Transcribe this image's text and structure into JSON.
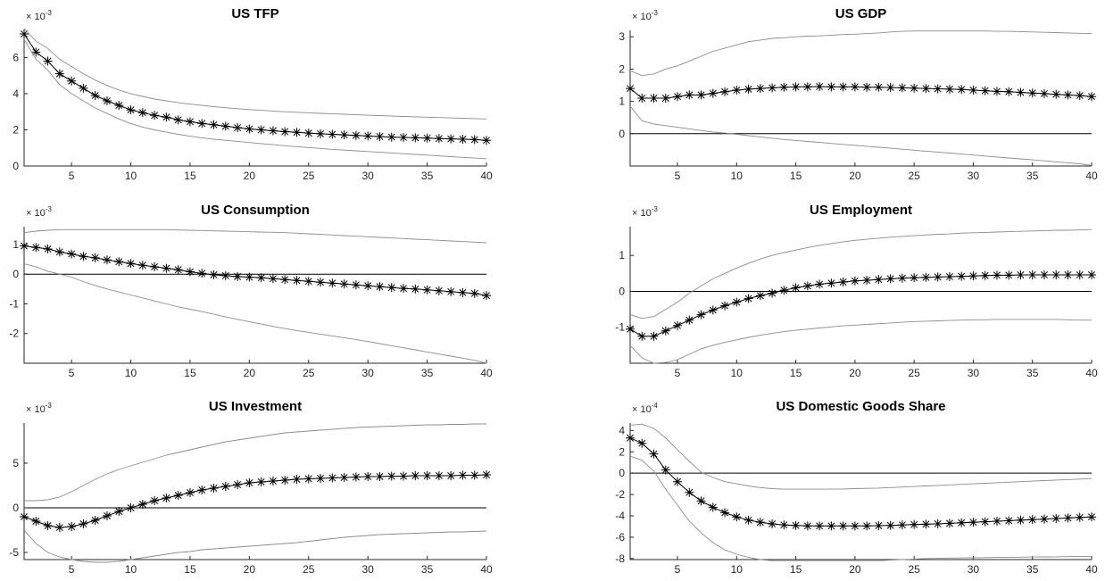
{
  "chart_data": [
    {
      "type": "line",
      "title": "US TFP",
      "multiplier": "× 10^-3",
      "multiplier_base": "× 10",
      "multiplier_exp": "-3",
      "x": {
        "min": 1,
        "max": 40,
        "ticks": [
          5,
          10,
          15,
          20,
          25,
          30,
          35,
          40
        ]
      },
      "y": {
        "min": 0,
        "max": 7.5,
        "ticks": [
          0,
          2,
          4,
          6
        ]
      },
      "zero_line": false,
      "series": [
        {
          "role": "estimate",
          "values": [
            7.3,
            6.3,
            5.8,
            5.1,
            4.7,
            4.3,
            3.9,
            3.6,
            3.35,
            3.1,
            2.95,
            2.8,
            2.7,
            2.55,
            2.45,
            2.35,
            2.28,
            2.2,
            2.12,
            2.05,
            2.0,
            1.95,
            1.9,
            1.86,
            1.82,
            1.78,
            1.75,
            1.72,
            1.69,
            1.66,
            1.63,
            1.6,
            1.58,
            1.56,
            1.54,
            1.52,
            1.5,
            1.48,
            1.46,
            1.42
          ]
        },
        {
          "role": "upper",
          "values": [
            7.6,
            6.9,
            6.5,
            5.9,
            5.5,
            5.1,
            4.75,
            4.45,
            4.2,
            4.0,
            3.85,
            3.7,
            3.6,
            3.5,
            3.42,
            3.35,
            3.28,
            3.22,
            3.17,
            3.12,
            3.08,
            3.04,
            3.0,
            2.97,
            2.94,
            2.91,
            2.88,
            2.86,
            2.83,
            2.81,
            2.79,
            2.76,
            2.74,
            2.72,
            2.7,
            2.68,
            2.66,
            2.64,
            2.62,
            2.6
          ]
        },
        {
          "role": "lower",
          "values": [
            7.0,
            5.9,
            5.3,
            4.5,
            4.0,
            3.6,
            3.2,
            2.9,
            2.6,
            2.35,
            2.15,
            2.0,
            1.87,
            1.75,
            1.65,
            1.56,
            1.48,
            1.42,
            1.36,
            1.3,
            1.24,
            1.18,
            1.12,
            1.07,
            1.02,
            0.97,
            0.92,
            0.88,
            0.84,
            0.8,
            0.76,
            0.72,
            0.68,
            0.64,
            0.6,
            0.56,
            0.52,
            0.48,
            0.44,
            0.4
          ]
        }
      ]
    },
    {
      "type": "line",
      "title": "US GDP",
      "multiplier": "× 10^-3",
      "multiplier_base": "× 10",
      "multiplier_exp": "-3",
      "x": {
        "min": 1,
        "max": 40,
        "ticks": [
          5,
          10,
          15,
          20,
          25,
          30,
          35,
          40
        ]
      },
      "y": {
        "min": -1.0,
        "max": 3.2,
        "ticks": [
          0,
          1,
          2,
          3
        ]
      },
      "zero_line": true,
      "series": [
        {
          "role": "estimate",
          "values": [
            1.4,
            1.1,
            1.1,
            1.1,
            1.15,
            1.2,
            1.2,
            1.25,
            1.3,
            1.35,
            1.38,
            1.4,
            1.42,
            1.44,
            1.45,
            1.45,
            1.46,
            1.45,
            1.45,
            1.45,
            1.44,
            1.44,
            1.43,
            1.42,
            1.41,
            1.4,
            1.39,
            1.38,
            1.37,
            1.35,
            1.33,
            1.31,
            1.3,
            1.28,
            1.26,
            1.24,
            1.22,
            1.2,
            1.18,
            1.15
          ]
        },
        {
          "role": "upper",
          "values": [
            1.95,
            1.8,
            1.85,
            2.0,
            2.1,
            2.25,
            2.4,
            2.55,
            2.65,
            2.75,
            2.85,
            2.9,
            2.95,
            2.97,
            3.0,
            3.02,
            3.03,
            3.05,
            3.07,
            3.08,
            3.1,
            3.12,
            3.15,
            3.17,
            3.18,
            3.18,
            3.18,
            3.18,
            3.18,
            3.18,
            3.18,
            3.17,
            3.17,
            3.16,
            3.15,
            3.14,
            3.13,
            3.12,
            3.11,
            3.1
          ]
        },
        {
          "role": "lower",
          "values": [
            0.85,
            0.4,
            0.3,
            0.25,
            0.2,
            0.15,
            0.1,
            0.05,
            0.02,
            -0.02,
            -0.06,
            -0.1,
            -0.14,
            -0.18,
            -0.21,
            -0.24,
            -0.27,
            -0.3,
            -0.33,
            -0.36,
            -0.39,
            -0.42,
            -0.45,
            -0.48,
            -0.51,
            -0.54,
            -0.57,
            -0.6,
            -0.63,
            -0.66,
            -0.69,
            -0.72,
            -0.75,
            -0.78,
            -0.81,
            -0.84,
            -0.87,
            -0.9,
            -0.93,
            -0.98
          ]
        }
      ]
    },
    {
      "type": "line",
      "title": "US Consumption",
      "multiplier": "× 10^-3",
      "multiplier_base": "× 10",
      "multiplier_exp": "-3",
      "x": {
        "min": 1,
        "max": 40,
        "ticks": [
          5,
          10,
          15,
          20,
          25,
          30,
          35,
          40
        ]
      },
      "y": {
        "min": -3.0,
        "max": 1.6,
        "ticks": [
          -2,
          -1,
          0,
          1
        ]
      },
      "zero_line": true,
      "series": [
        {
          "role": "estimate",
          "values": [
            0.95,
            0.9,
            0.85,
            0.75,
            0.68,
            0.6,
            0.55,
            0.48,
            0.42,
            0.36,
            0.3,
            0.25,
            0.2,
            0.15,
            0.08,
            0.03,
            -0.02,
            -0.05,
            -0.08,
            -0.1,
            -0.12,
            -0.15,
            -0.18,
            -0.21,
            -0.24,
            -0.27,
            -0.3,
            -0.33,
            -0.36,
            -0.39,
            -0.42,
            -0.45,
            -0.48,
            -0.5,
            -0.53,
            -0.56,
            -0.59,
            -0.62,
            -0.65,
            -0.72
          ]
        },
        {
          "role": "upper",
          "values": [
            1.4,
            1.45,
            1.48,
            1.5,
            1.5,
            1.5,
            1.5,
            1.5,
            1.5,
            1.5,
            1.5,
            1.5,
            1.5,
            1.49,
            1.48,
            1.47,
            1.46,
            1.45,
            1.44,
            1.43,
            1.42,
            1.41,
            1.4,
            1.38,
            1.36,
            1.34,
            1.32,
            1.3,
            1.28,
            1.26,
            1.24,
            1.22,
            1.2,
            1.18,
            1.16,
            1.14,
            1.12,
            1.1,
            1.08,
            1.06
          ]
        },
        {
          "role": "lower",
          "values": [
            0.35,
            0.25,
            0.1,
            0.0,
            -0.1,
            -0.25,
            -0.38,
            -0.5,
            -0.6,
            -0.7,
            -0.8,
            -0.9,
            -1.0,
            -1.1,
            -1.18,
            -1.26,
            -1.35,
            -1.44,
            -1.52,
            -1.6,
            -1.68,
            -1.76,
            -1.83,
            -1.9,
            -1.96,
            -2.02,
            -2.08,
            -2.14,
            -2.2,
            -2.27,
            -2.34,
            -2.41,
            -2.48,
            -2.55,
            -2.62,
            -2.69,
            -2.76,
            -2.83,
            -2.9,
            -3.0
          ]
        }
      ]
    },
    {
      "type": "line",
      "title": "US Employment",
      "multiplier": "× 10^-3",
      "multiplier_base": "× 10",
      "multiplier_exp": "-3",
      "x": {
        "min": 1,
        "max": 40,
        "ticks": [
          5,
          10,
          15,
          20,
          25,
          30,
          35,
          40
        ]
      },
      "y": {
        "min": -2.0,
        "max": 1.8,
        "ticks": [
          -1,
          0,
          1
        ]
      },
      "zero_line": true,
      "series": [
        {
          "role": "estimate",
          "values": [
            -1.05,
            -1.25,
            -1.25,
            -1.1,
            -0.95,
            -0.8,
            -0.65,
            -0.52,
            -0.4,
            -0.3,
            -0.2,
            -0.12,
            -0.05,
            0.03,
            0.1,
            0.15,
            0.2,
            0.23,
            0.26,
            0.29,
            0.31,
            0.33,
            0.35,
            0.37,
            0.38,
            0.39,
            0.4,
            0.41,
            0.42,
            0.43,
            0.44,
            0.45,
            0.45,
            0.46,
            0.46,
            0.46,
            0.46,
            0.46,
            0.46,
            0.46
          ]
        },
        {
          "role": "upper",
          "values": [
            -0.65,
            -0.75,
            -0.7,
            -0.5,
            -0.3,
            -0.05,
            0.15,
            0.35,
            0.5,
            0.65,
            0.78,
            0.9,
            1.0,
            1.08,
            1.15,
            1.22,
            1.28,
            1.33,
            1.38,
            1.42,
            1.45,
            1.48,
            1.51,
            1.53,
            1.55,
            1.57,
            1.59,
            1.6,
            1.62,
            1.63,
            1.64,
            1.65,
            1.66,
            1.67,
            1.68,
            1.69,
            1.7,
            1.7,
            1.71,
            1.72
          ]
        },
        {
          "role": "lower",
          "values": [
            -1.5,
            -1.85,
            -2.0,
            -1.98,
            -1.9,
            -1.75,
            -1.6,
            -1.5,
            -1.42,
            -1.35,
            -1.28,
            -1.22,
            -1.17,
            -1.12,
            -1.08,
            -1.05,
            -1.02,
            -0.99,
            -0.96,
            -0.94,
            -0.92,
            -0.9,
            -0.88,
            -0.86,
            -0.84,
            -0.83,
            -0.82,
            -0.81,
            -0.8,
            -0.79,
            -0.79,
            -0.78,
            -0.78,
            -0.78,
            -0.78,
            -0.78,
            -0.78,
            -0.79,
            -0.8,
            -0.8
          ]
        }
      ]
    },
    {
      "type": "line",
      "title": "US Investment",
      "multiplier": "× 10^-3",
      "multiplier_base": "× 10",
      "multiplier_exp": "-3",
      "x": {
        "min": 1,
        "max": 40,
        "ticks": [
          5,
          10,
          15,
          20,
          25,
          30,
          35,
          40
        ]
      },
      "y": {
        "min": -5.8,
        "max": 9.5,
        "ticks": [
          -5,
          0,
          5
        ]
      },
      "zero_line": true,
      "series": [
        {
          "role": "estimate",
          "values": [
            -1.0,
            -1.5,
            -2.0,
            -2.2,
            -2.1,
            -1.8,
            -1.4,
            -0.9,
            -0.4,
            0.0,
            0.4,
            0.8,
            1.1,
            1.4,
            1.7,
            2.0,
            2.2,
            2.4,
            2.6,
            2.8,
            2.9,
            3.0,
            3.1,
            3.2,
            3.25,
            3.3,
            3.35,
            3.4,
            3.45,
            3.5,
            3.5,
            3.55,
            3.55,
            3.6,
            3.6,
            3.6,
            3.6,
            3.65,
            3.65,
            3.7
          ]
        },
        {
          "role": "upper",
          "values": [
            0.8,
            0.8,
            0.9,
            1.2,
            1.8,
            2.5,
            3.2,
            3.8,
            4.3,
            4.7,
            5.1,
            5.5,
            5.9,
            6.2,
            6.5,
            6.8,
            7.1,
            7.4,
            7.6,
            7.8,
            8.0,
            8.2,
            8.4,
            8.5,
            8.6,
            8.7,
            8.8,
            8.9,
            9.0,
            9.05,
            9.1,
            9.15,
            9.2,
            9.25,
            9.3,
            9.3,
            9.35,
            9.35,
            9.4,
            9.4
          ]
        },
        {
          "role": "lower",
          "values": [
            -2.5,
            -4.0,
            -5.0,
            -5.5,
            -5.8,
            -6.0,
            -6.1,
            -6.1,
            -6.0,
            -5.8,
            -5.6,
            -5.4,
            -5.2,
            -5.0,
            -4.9,
            -4.7,
            -4.6,
            -4.5,
            -4.4,
            -4.3,
            -4.2,
            -4.1,
            -4.0,
            -3.9,
            -3.75,
            -3.6,
            -3.45,
            -3.3,
            -3.2,
            -3.1,
            -3.0,
            -2.95,
            -2.9,
            -2.85,
            -2.8,
            -2.75,
            -2.7,
            -2.7,
            -2.65,
            -2.6
          ]
        }
      ]
    },
    {
      "type": "line",
      "title": "US Domestic Goods Share",
      "multiplier": "× 10^-4",
      "multiplier_base": "× 10",
      "multiplier_exp": "-4",
      "x": {
        "min": 1,
        "max": 40,
        "ticks": [
          5,
          10,
          15,
          20,
          25,
          30,
          35,
          40
        ]
      },
      "y": {
        "min": -8.1,
        "max": 4.7,
        "ticks": [
          -8,
          -6,
          -4,
          -2,
          0,
          2,
          4
        ]
      },
      "zero_line": true,
      "series": [
        {
          "role": "estimate",
          "values": [
            3.3,
            2.8,
            1.8,
            0.3,
            -0.8,
            -1.8,
            -2.6,
            -3.2,
            -3.7,
            -4.1,
            -4.4,
            -4.6,
            -4.75,
            -4.85,
            -4.9,
            -4.95,
            -4.95,
            -4.95,
            -4.95,
            -4.95,
            -4.95,
            -4.92,
            -4.9,
            -4.85,
            -4.82,
            -4.78,
            -4.75,
            -4.7,
            -4.65,
            -4.6,
            -4.55,
            -4.5,
            -4.45,
            -4.4,
            -4.35,
            -4.3,
            -4.25,
            -4.2,
            -4.15,
            -4.1
          ]
        },
        {
          "role": "upper",
          "values": [
            4.5,
            4.6,
            4.2,
            3.3,
            2.2,
            1.1,
            0.1,
            -0.4,
            -0.8,
            -1.0,
            -1.2,
            -1.35,
            -1.45,
            -1.5,
            -1.5,
            -1.5,
            -1.5,
            -1.5,
            -1.48,
            -1.45,
            -1.42,
            -1.4,
            -1.35,
            -1.3,
            -1.25,
            -1.2,
            -1.15,
            -1.1,
            -1.05,
            -1.0,
            -0.95,
            -0.9,
            -0.85,
            -0.8,
            -0.75,
            -0.7,
            -0.65,
            -0.6,
            -0.55,
            -0.5
          ]
        },
        {
          "role": "lower",
          "values": [
            1.6,
            1.2,
            0.2,
            -1.5,
            -3.0,
            -4.5,
            -5.6,
            -6.5,
            -7.2,
            -7.6,
            -7.9,
            -8.1,
            -8.2,
            -8.2,
            -8.2,
            -8.2,
            -8.2,
            -8.2,
            -8.2,
            -8.2,
            -8.2,
            -8.2,
            -8.15,
            -8.1,
            -8.05,
            -8.0,
            -7.98,
            -7.96,
            -7.95,
            -7.93,
            -7.92,
            -7.9,
            -7.88,
            -7.87,
            -7.86,
            -7.85,
            -7.84,
            -7.82,
            -7.8,
            -7.8
          ]
        }
      ]
    }
  ]
}
